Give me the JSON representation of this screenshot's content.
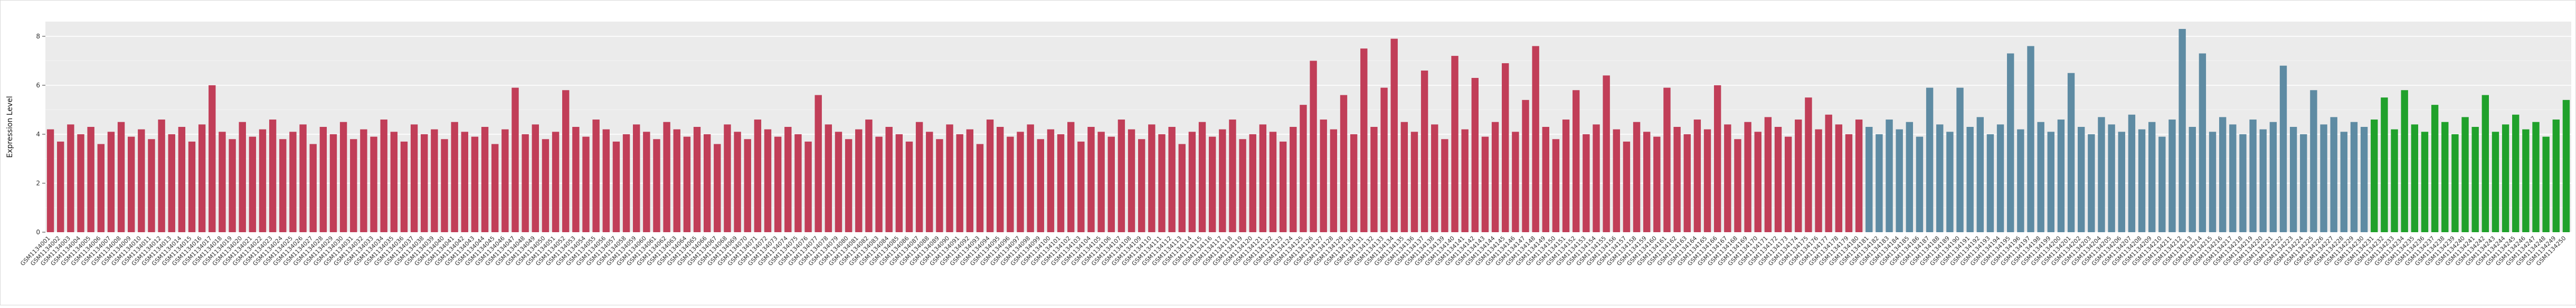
{
  "chart_data": {
    "type": "bar",
    "title": "",
    "ylabel": "Expression Level",
    "xlabel": "",
    "yticks": [
      0,
      2,
      4,
      6,
      8
    ],
    "ylim": [
      0,
      8.6
    ],
    "grid": "horizontal-white-on-gray",
    "legend": "none",
    "plot_bg": "#ebebeb",
    "grid_major_color": "#ffffff",
    "grid_minor_color": "#f4f4f4",
    "axis_text_color": "#333333",
    "groups": [
      {
        "color": "#c13e58",
        "count": 180
      },
      {
        "color": "#5e8ba3",
        "count": 50
      },
      {
        "color": "#20a12b",
        "count": 20
      }
    ],
    "categories": [
      "GSM1134001",
      "GSM1134002",
      "GSM1134003",
      "GSM1134004",
      "GSM1134005",
      "GSM1134006",
      "GSM1134007",
      "GSM1134008",
      "GSM1134009",
      "GSM1134010",
      "GSM1134011",
      "GSM1134012",
      "GSM1134013",
      "GSM1134014",
      "GSM1134015",
      "GSM1134016",
      "GSM1134017",
      "GSM1134018",
      "GSM1134019",
      "GSM1134020",
      "GSM1134021",
      "GSM1134022",
      "GSM1134023",
      "GSM1134024",
      "GSM1134025",
      "GSM1134026",
      "GSM1134027",
      "GSM1134028",
      "GSM1134029",
      "GSM1134030",
      "GSM1134031",
      "GSM1134032",
      "GSM1134033",
      "GSM1134034",
      "GSM1134035",
      "GSM1134036",
      "GSM1134037",
      "GSM1134038",
      "GSM1134039",
      "GSM1134040",
      "GSM1134041",
      "GSM1134042",
      "GSM1134043",
      "GSM1134044",
      "GSM1134045",
      "GSM1134046",
      "GSM1134047",
      "GSM1134048",
      "GSM1134049",
      "GSM1134050",
      "GSM1134051",
      "GSM1134052",
      "GSM1134053",
      "GSM1134054",
      "GSM1134055",
      "GSM1134056",
      "GSM1134057",
      "GSM1134058",
      "GSM1134059",
      "GSM1134060",
      "GSM1134061",
      "GSM1134062",
      "GSM1134063",
      "GSM1134064",
      "GSM1134065",
      "GSM1134066",
      "GSM1134067",
      "GSM1134068",
      "GSM1134069",
      "GSM1134070",
      "GSM1134071",
      "GSM1134072",
      "GSM1134073",
      "GSM1134074",
      "GSM1134075",
      "GSM1134076",
      "GSM1134077",
      "GSM1134078",
      "GSM1134079",
      "GSM1134080",
      "GSM1134081",
      "GSM1134082",
      "GSM1134083",
      "GSM1134084",
      "GSM1134085",
      "GSM1134086",
      "GSM1134087",
      "GSM1134088",
      "GSM1134089",
      "GSM1134090",
      "GSM1134091",
      "GSM1134092",
      "GSM1134093",
      "GSM1134094",
      "GSM1134095",
      "GSM1134096",
      "GSM1134097",
      "GSM1134098",
      "GSM1134099",
      "GSM1134100",
      "GSM1134101",
      "GSM1134102",
      "GSM1134103",
      "GSM1134104",
      "GSM1134105",
      "GSM1134106",
      "GSM1134107",
      "GSM1134108",
      "GSM1134109",
      "GSM1134110",
      "GSM1134111",
      "GSM1134112",
      "GSM1134113",
      "GSM1134114",
      "GSM1134115",
      "GSM1134116",
      "GSM1134117",
      "GSM1134118",
      "GSM1134119",
      "GSM1134120",
      "GSM1134121",
      "GSM1134122",
      "GSM1134123",
      "GSM1134124",
      "GSM1134125",
      "GSM1134126",
      "GSM1134127",
      "GSM1134128",
      "GSM1134129",
      "GSM1134130",
      "GSM1134131",
      "GSM1134132",
      "GSM1134133",
      "GSM1134134",
      "GSM1134135",
      "GSM1134136",
      "GSM1134137",
      "GSM1134138",
      "GSM1134139",
      "GSM1134140",
      "GSM1134141",
      "GSM1134142",
      "GSM1134143",
      "GSM1134144",
      "GSM1134145",
      "GSM1134146",
      "GSM1134147",
      "GSM1134148",
      "GSM1134149",
      "GSM1134150",
      "GSM1134151",
      "GSM1134152",
      "GSM1134153",
      "GSM1134154",
      "GSM1134155",
      "GSM1134156",
      "GSM1134157",
      "GSM1134158",
      "GSM1134159",
      "GSM1134160",
      "GSM1134161",
      "GSM1134162",
      "GSM1134163",
      "GSM1134164",
      "GSM1134165",
      "GSM1134166",
      "GSM1134167",
      "GSM1134168",
      "GSM1134169",
      "GSM1134170",
      "GSM1134171",
      "GSM1134172",
      "GSM1134173",
      "GSM1134174",
      "GSM1134175",
      "GSM1134176",
      "GSM1134177",
      "GSM1134178",
      "GSM1134179",
      "GSM1134180",
      "GSM1134181",
      "GSM1134182",
      "GSM1134183",
      "GSM1134184",
      "GSM1134185",
      "GSM1134186",
      "GSM1134187",
      "GSM1134188",
      "GSM1134189",
      "GSM1134190",
      "GSM1134191",
      "GSM1134192",
      "GSM1134193",
      "GSM1134194",
      "GSM1134195",
      "GSM1134196",
      "GSM1134197",
      "GSM1134198",
      "GSM1134199",
      "GSM1134200",
      "GSM1134201",
      "GSM1134202",
      "GSM1134203",
      "GSM1134204",
      "GSM1134205",
      "GSM1134206",
      "GSM1134207",
      "GSM1134208",
      "GSM1134209",
      "GSM1134210",
      "GSM1134211",
      "GSM1134212",
      "GSM1134213",
      "GSM1134214",
      "GSM1134215",
      "GSM1134216",
      "GSM1134217",
      "GSM1134218",
      "GSM1134219",
      "GSM1134220",
      "GSM1134221",
      "GSM1134222",
      "GSM1134223",
      "GSM1134224",
      "GSM1134225",
      "GSM1134226",
      "GSM1134227",
      "GSM1134228",
      "GSM1134229",
      "GSM1134230",
      "GSM1134231",
      "GSM1134232",
      "GSM1134233",
      "GSM1134234",
      "GSM1134235",
      "GSM1134236",
      "GSM1134237",
      "GSM1134238",
      "GSM1134239",
      "GSM1134240",
      "GSM1134241",
      "GSM1134242",
      "GSM1134243",
      "GSM1134244",
      "GSM1134245",
      "GSM1134246",
      "GSM1134247",
      "GSM1134248",
      "GSM1134249",
      "GSM1134250"
    ],
    "values": [
      4.2,
      3.7,
      4.4,
      4.0,
      4.3,
      3.6,
      4.1,
      4.5,
      3.9,
      4.2,
      3.8,
      4.6,
      4.0,
      4.3,
      3.7,
      4.4,
      6.0,
      4.1,
      3.8,
      4.5,
      3.9,
      4.2,
      4.6,
      3.8,
      4.1,
      4.4,
      3.6,
      4.3,
      4.0,
      4.5,
      3.8,
      4.2,
      3.9,
      4.6,
      4.1,
      3.7,
      4.4,
      4.0,
      4.2,
      3.8,
      4.5,
      4.1,
      3.9,
      4.3,
      3.6,
      4.2,
      5.9,
      4.0,
      4.4,
      3.8,
      4.1,
      5.8,
      4.3,
      3.9,
      4.6,
      4.2,
      3.7,
      4.0,
      4.4,
      4.1,
      3.8,
      4.5,
      4.2,
      3.9,
      4.3,
      4.0,
      3.6,
      4.4,
      4.1,
      3.8,
      4.6,
      4.2,
      3.9,
      4.3,
      4.0,
      3.7,
      5.6,
      4.4,
      4.1,
      3.8,
      4.2,
      4.6,
      3.9,
      4.3,
      4.0,
      3.7,
      4.5,
      4.1,
      3.8,
      4.4,
      4.0,
      4.2,
      3.6,
      4.6,
      4.3,
      3.9,
      4.1,
      4.4,
      3.8,
      4.2,
      4.0,
      4.5,
      3.7,
      4.3,
      4.1,
      3.9,
      4.6,
      4.2,
      3.8,
      4.4,
      4.0,
      4.3,
      3.6,
      4.1,
      4.5,
      3.9,
      4.2,
      4.6,
      3.8,
      4.0,
      4.4,
      4.1,
      3.7,
      4.3,
      5.2,
      7.0,
      4.6,
      4.2,
      5.6,
      4.0,
      7.5,
      4.3,
      5.9,
      7.9,
      4.5,
      4.1,
      6.6,
      4.4,
      3.8,
      7.2,
      4.2,
      6.3,
      3.9,
      4.5,
      6.9,
      4.1,
      5.4,
      7.6,
      4.3,
      3.8,
      4.6,
      5.8,
      4.0,
      4.4,
      6.4,
      4.2,
      3.7,
      4.5,
      4.1,
      3.9,
      5.9,
      4.3,
      4.0,
      4.6,
      4.2,
      6.0,
      4.4,
      3.8,
      4.5,
      4.1,
      4.7,
      4.3,
      3.9,
      4.6,
      5.5,
      4.2,
      4.8,
      4.4,
      4.0,
      4.6,
      4.3,
      4.0,
      4.6,
      4.2,
      4.5,
      3.9,
      5.9,
      4.4,
      4.1,
      5.9,
      4.3,
      4.7,
      4.0,
      4.4,
      7.3,
      4.2,
      7.6,
      4.5,
      4.1,
      4.6,
      6.5,
      4.3,
      4.0,
      4.7,
      4.4,
      4.1,
      4.8,
      4.2,
      4.5,
      3.9,
      4.6,
      8.3,
      4.3,
      7.3,
      4.1,
      4.7,
      4.4,
      4.0,
      4.6,
      4.2,
      4.5,
      6.8,
      4.3,
      4.0,
      5.8,
      4.4,
      4.7,
      4.1,
      4.5,
      4.3,
      4.6,
      5.5,
      4.2,
      5.8,
      4.4,
      4.1,
      5.2,
      4.5,
      4.0,
      4.7,
      4.3,
      5.6,
      4.1,
      4.4,
      4.8,
      4.2,
      4.5,
      3.9,
      4.6,
      5.4
    ]
  }
}
